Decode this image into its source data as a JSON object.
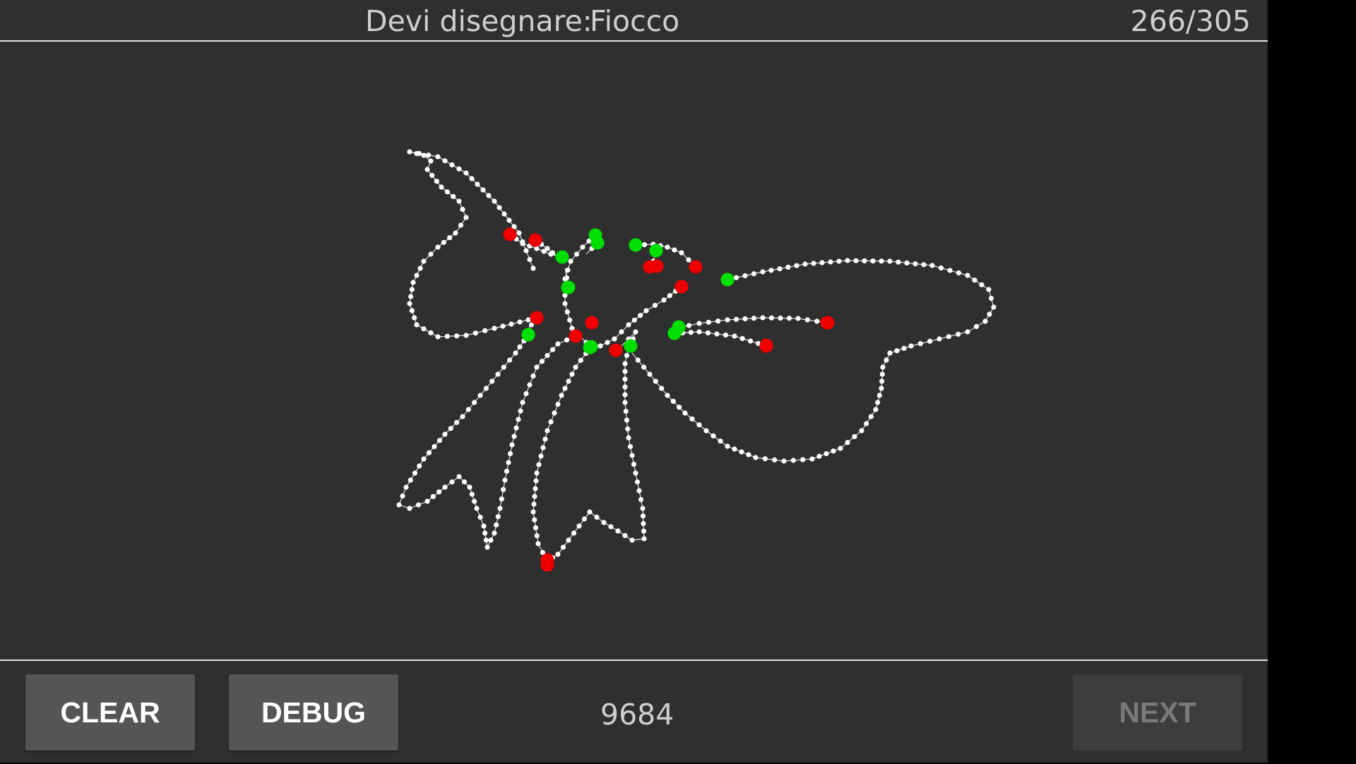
{
  "header": {
    "prompt_label": "Devi disegnare:",
    "prompt_word": "Fiocco",
    "progress": "266/305"
  },
  "footer": {
    "clear_label": "CLEAR",
    "debug_label": "DEBUG",
    "score": "9684",
    "next_label": "NEXT"
  },
  "colors": {
    "background": "#2f2f2f",
    "stroke": "#ffffff",
    "start_marker": "#00e000",
    "end_marker": "#ee0000"
  },
  "drawing": {
    "subject": "Fiocco"
  }
}
